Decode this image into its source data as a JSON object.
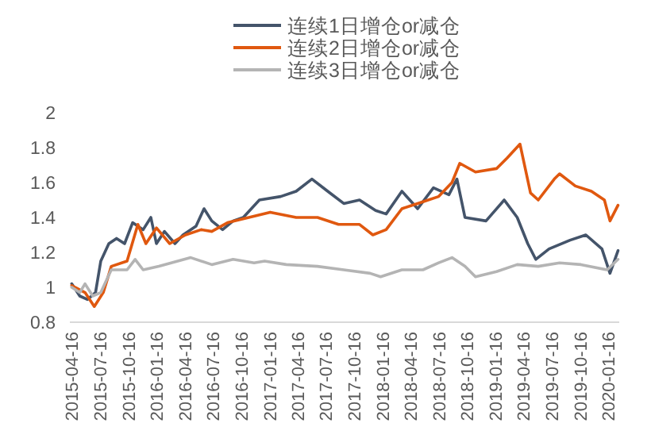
{
  "chart_data": {
    "type": "line",
    "legend": "top",
    "line_style": "solid",
    "xlim": [
      "2015-04-10",
      "2020-02-20"
    ],
    "ylim": [
      0.8,
      2
    ],
    "yticks": [
      0.8,
      1,
      1.2,
      1.4,
      1.6,
      1.8,
      2
    ],
    "xticks": [
      "2015-04-16",
      "2015-07-16",
      "2015-10-16",
      "2016-01-16",
      "2016-04-16",
      "2016-07-16",
      "2016-10-16",
      "2017-01-16",
      "2017-04-16",
      "2017-07-16",
      "2017-10-16",
      "2018-01-16",
      "2018-04-16",
      "2018-07-16",
      "2018-10-16",
      "2019-01-16",
      "2019-04-16",
      "2019-07-16",
      "2019-10-16",
      "2020-01-16"
    ],
    "series": [
      {
        "name": "连续1日增仓or减仓",
        "color": "#44546a",
        "x": [
          "2015-04-16",
          "2015-05-12",
          "2015-06-06",
          "2015-07-02",
          "2015-07-19",
          "2015-08-14",
          "2015-09-08",
          "2015-10-04",
          "2015-10-30",
          "2015-12-03",
          "2015-12-28",
          "2016-01-15",
          "2016-02-10",
          "2016-03-15",
          "2016-04-10",
          "2016-05-22",
          "2016-06-17",
          "2016-07-12",
          "2016-08-16",
          "2016-09-19",
          "2016-10-22",
          "2016-12-13",
          "2017-02-20",
          "2017-04-11",
          "2017-06-01",
          "2017-07-22",
          "2017-09-12",
          "2017-11-02",
          "2017-12-24",
          "2018-01-27",
          "2018-03-19",
          "2018-05-09",
          "2018-06-29",
          "2018-08-18",
          "2018-09-13",
          "2018-10-09",
          "2018-12-16",
          "2019-02-13",
          "2019-03-27",
          "2019-04-30",
          "2019-05-26",
          "2019-07-08",
          "2019-09-14",
          "2019-11-04",
          "2019-12-26",
          "2020-01-21",
          "2020-02-16"
        ],
        "values": [
          1.02,
          0.95,
          0.93,
          0.97,
          1.15,
          1.25,
          1.28,
          1.25,
          1.37,
          1.33,
          1.4,
          1.25,
          1.32,
          1.25,
          1.3,
          1.35,
          1.45,
          1.38,
          1.33,
          1.38,
          1.4,
          1.5,
          1.52,
          1.55,
          1.62,
          1.55,
          1.48,
          1.5,
          1.44,
          1.42,
          1.55,
          1.45,
          1.57,
          1.53,
          1.62,
          1.4,
          1.38,
          1.5,
          1.4,
          1.25,
          1.16,
          1.22,
          1.27,
          1.3,
          1.22,
          1.08,
          1.21
        ]
      },
      {
        "name": "连续2日增仓or减仓",
        "color": "#e0580f",
        "x": [
          "2015-04-16",
          "2015-05-29",
          "2015-06-28",
          "2015-07-27",
          "2015-08-22",
          "2015-10-12",
          "2015-11-16",
          "2015-12-12",
          "2016-01-15",
          "2016-02-27",
          "2016-04-18",
          "2016-06-08",
          "2016-07-12",
          "2016-09-01",
          "2016-11-09",
          "2017-01-17",
          "2017-04-11",
          "2017-06-19",
          "2017-08-26",
          "2017-11-02",
          "2017-12-15",
          "2018-01-27",
          "2018-03-19",
          "2018-05-26",
          "2018-07-16",
          "2018-08-28",
          "2018-09-22",
          "2018-11-12",
          "2019-01-19",
          "2019-02-22",
          "2019-04-05",
          "2019-05-09",
          "2019-06-03",
          "2019-07-25",
          "2019-08-11",
          "2019-10-01",
          "2019-11-22",
          "2020-01-03",
          "2020-01-21",
          "2020-02-16"
        ],
        "values": [
          1.01,
          0.97,
          0.89,
          0.97,
          1.12,
          1.15,
          1.36,
          1.25,
          1.34,
          1.25,
          1.3,
          1.33,
          1.32,
          1.37,
          1.4,
          1.43,
          1.4,
          1.4,
          1.36,
          1.36,
          1.3,
          1.33,
          1.45,
          1.49,
          1.52,
          1.6,
          1.71,
          1.66,
          1.68,
          1.74,
          1.82,
          1.54,
          1.5,
          1.62,
          1.65,
          1.58,
          1.55,
          1.5,
          1.38,
          1.47
        ]
      },
      {
        "name": "连续3日增仓or减仓",
        "color": "#b4b4b4",
        "x": [
          "2015-04-16",
          "2015-05-12",
          "2015-05-29",
          "2015-06-23",
          "2015-07-19",
          "2015-08-22",
          "2015-10-12",
          "2015-11-07",
          "2015-12-03",
          "2016-01-23",
          "2016-05-05",
          "2016-07-12",
          "2016-09-19",
          "2016-11-26",
          "2016-12-30",
          "2017-03-10",
          "2017-06-19",
          "2017-09-12",
          "2017-12-06",
          "2018-01-09",
          "2018-03-19",
          "2018-05-26",
          "2018-07-16",
          "2018-08-28",
          "2018-10-09",
          "2018-11-12",
          "2019-01-19",
          "2019-03-27",
          "2019-06-03",
          "2019-08-11",
          "2019-10-19",
          "2020-01-12",
          "2020-02-16"
        ],
        "values": [
          1,
          0.97,
          1.02,
          0.95,
          0.97,
          1.1,
          1.1,
          1.16,
          1.1,
          1.12,
          1.17,
          1.13,
          1.16,
          1.14,
          1.15,
          1.13,
          1.12,
          1.1,
          1.08,
          1.06,
          1.1,
          1.1,
          1.14,
          1.17,
          1.12,
          1.06,
          1.09,
          1.13,
          1.12,
          1.14,
          1.13,
          1.1,
          1.16
        ]
      }
    ]
  }
}
